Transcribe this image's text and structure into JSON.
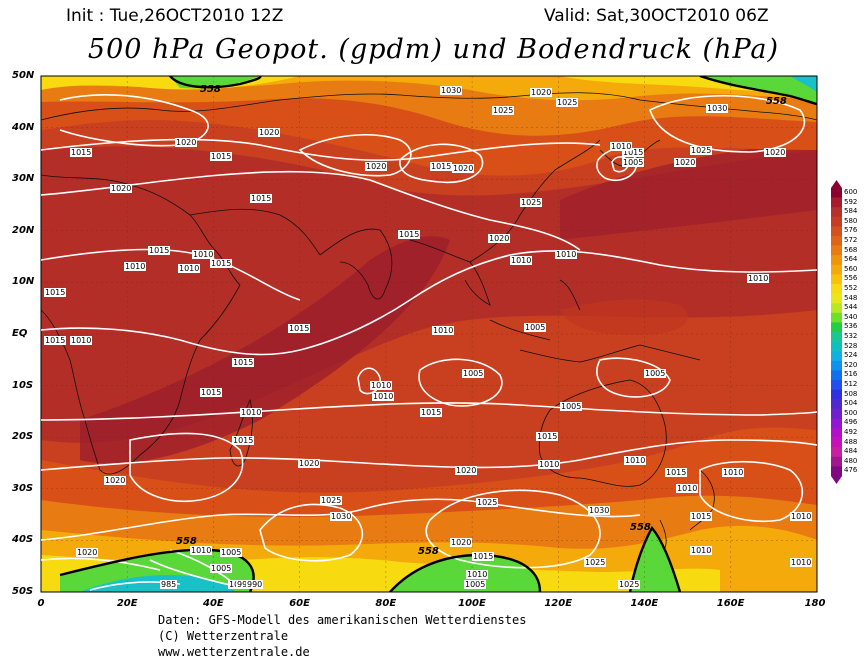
{
  "header": {
    "init": "Init : Tue,26OCT2010 12Z",
    "valid": "Valid: Sat,30OCT2010 06Z",
    "title": "500 hPa Geopot. (gpdm) und Bodendruck (hPa)"
  },
  "lat_labels": [
    "50N",
    "40N",
    "30N",
    "20N",
    "10N",
    "EQ",
    "10S",
    "20S",
    "30S",
    "40S",
    "50S"
  ],
  "lon_labels": [
    "0",
    "20E",
    "40E",
    "60E",
    "80E",
    "100E",
    "120E",
    "140E",
    "160E",
    "180"
  ],
  "colorbar": {
    "labels": [
      "600",
      "592",
      "584",
      "580",
      "576",
      "572",
      "568",
      "564",
      "560",
      "556",
      "552",
      "548",
      "544",
      "540",
      "536",
      "532",
      "528",
      "524",
      "520",
      "516",
      "512",
      "508",
      "504",
      "500",
      "496",
      "492",
      "488",
      "484",
      "480",
      "476"
    ],
    "colors": [
      "#8c0030",
      "#a81a2c",
      "#b8302a",
      "#c83c24",
      "#d4501e",
      "#e06418",
      "#e87c12",
      "#f0940e",
      "#f4aa0a",
      "#f8c20a",
      "#f8da10",
      "#e8e818",
      "#b8e820",
      "#6ee028",
      "#20d040",
      "#18c890",
      "#10c0c0",
      "#10b0e0",
      "#1090f0",
      "#1070f0",
      "#2050f0",
      "#3030e0",
      "#5028d0",
      "#7020d0",
      "#9018d0",
      "#b010c8",
      "#c810b8",
      "#c820a0",
      "#a01890",
      "#800880"
    ]
  },
  "isobar_labels": [
    {
      "text": "1030"
    },
    {
      "text": "1025"
    },
    {
      "text": "1020"
    },
    {
      "text": "1025"
    },
    {
      "text": "1030"
    },
    {
      "text": "1015"
    },
    {
      "text": "1020"
    },
    {
      "text": "1015"
    },
    {
      "text": "1020"
    },
    {
      "text": "1020"
    },
    {
      "text": "1015"
    },
    {
      "text": "1020"
    },
    {
      "text": "1015"
    },
    {
      "text": "1005"
    },
    {
      "text": "1020"
    },
    {
      "text": "1025"
    },
    {
      "text": "1020"
    },
    {
      "text": "1020"
    },
    {
      "text": "1015"
    },
    {
      "text": "1025"
    },
    {
      "text": "1015"
    },
    {
      "text": "1020"
    },
    {
      "text": "1015"
    },
    {
      "text": "1010"
    },
    {
      "text": "1015"
    },
    {
      "text": "1010"
    },
    {
      "text": "1010"
    },
    {
      "text": "1015"
    },
    {
      "text": "1010"
    },
    {
      "text": "1010"
    },
    {
      "text": "1010"
    },
    {
      "text": "1015"
    },
    {
      "text": "1010"
    },
    {
      "text": "1005"
    },
    {
      "text": "1010"
    },
    {
      "text": "1015"
    },
    {
      "text": "1010"
    },
    {
      "text": "1015"
    },
    {
      "text": "1010"
    },
    {
      "text": "1010"
    },
    {
      "text": "1005"
    },
    {
      "text": "1005"
    },
    {
      "text": "1015"
    },
    {
      "text": "1010"
    },
    {
      "text": "1015"
    },
    {
      "text": "1005"
    },
    {
      "text": "1015"
    },
    {
      "text": "1010"
    },
    {
      "text": "1010"
    },
    {
      "text": "1020"
    },
    {
      "text": "1020"
    },
    {
      "text": "1015"
    },
    {
      "text": "1010"
    },
    {
      "text": "1020"
    },
    {
      "text": "1015"
    },
    {
      "text": "1025"
    },
    {
      "text": "1030"
    },
    {
      "text": "1025"
    },
    {
      "text": "1030"
    },
    {
      "text": "1010"
    },
    {
      "text": "1015"
    },
    {
      "text": "1010"
    },
    {
      "text": "1020"
    },
    {
      "text": "1010"
    },
    {
      "text": "1005"
    },
    {
      "text": "1020"
    },
    {
      "text": "1015"
    },
    {
      "text": "1010"
    },
    {
      "text": "1005"
    },
    {
      "text": "1025"
    },
    {
      "text": "1025"
    },
    {
      "text": "1010"
    },
    {
      "text": "1000"
    },
    {
      "text": "995"
    },
    {
      "text": "990"
    },
    {
      "text": "985"
    },
    {
      "text": "1010"
    },
    {
      "text": "1000"
    },
    {
      "text": "1005"
    }
  ],
  "contour_labels": [
    {
      "text": "558"
    },
    {
      "text": "558"
    },
    {
      "text": "558"
    },
    {
      "text": "558"
    },
    {
      "text": "558"
    }
  ],
  "footer": {
    "line1": "Daten: GFS-Modell des amerikanischen Wetterdienstes",
    "line2": "(C) Wetterzentrale",
    "line3": "www.wetterzentrale.de"
  }
}
